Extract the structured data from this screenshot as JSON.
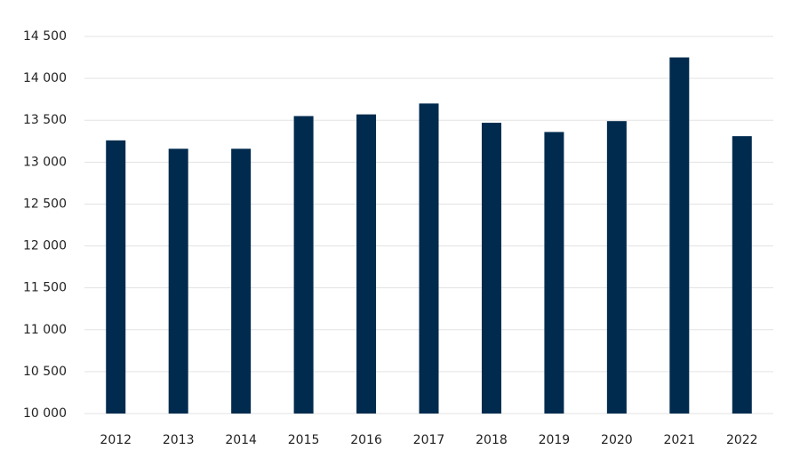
{
  "chart_data": {
    "type": "bar",
    "categories": [
      "2012",
      "2013",
      "2014",
      "2015",
      "2016",
      "2017",
      "2018",
      "2019",
      "2020",
      "2021",
      "2022"
    ],
    "values": [
      13260,
      13160,
      13160,
      13550,
      13570,
      13700,
      13470,
      13360,
      13490,
      14250,
      13310
    ],
    "color": "#002b4e",
    "ylim": [
      10000,
      14500
    ],
    "yticks": [
      {
        "value": 10000,
        "label": "10 000"
      },
      {
        "value": 10500,
        "label": "10 500"
      },
      {
        "value": 11000,
        "label": "11 000"
      },
      {
        "value": 11500,
        "label": "11 500"
      },
      {
        "value": 12000,
        "label": "12 000"
      },
      {
        "value": 12500,
        "label": "12 500"
      },
      {
        "value": 13000,
        "label": "13 000"
      },
      {
        "value": 13500,
        "label": "13 500"
      },
      {
        "value": 14000,
        "label": "14 000"
      },
      {
        "value": 14500,
        "label": "14 500"
      }
    ],
    "grid": true
  }
}
